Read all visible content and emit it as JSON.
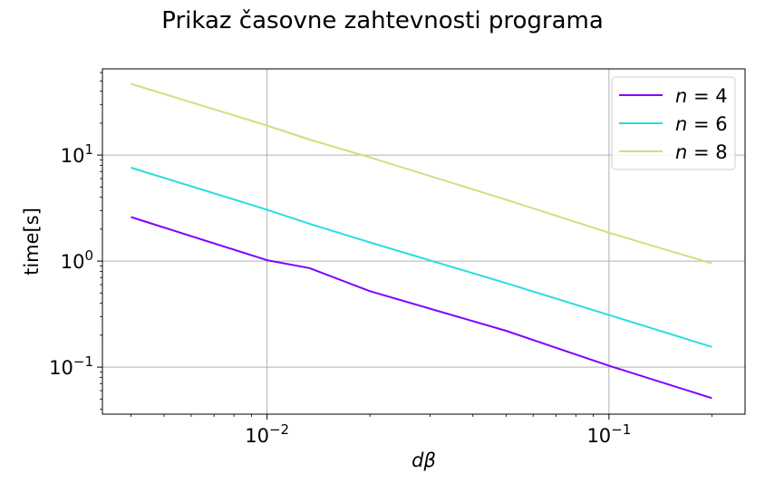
{
  "chart_data": {
    "type": "line",
    "title": "Prikaz časovne zahtevnosti programa",
    "xlabel": "dβ",
    "ylabel": "time[s]",
    "xscale": "log",
    "yscale": "log",
    "xlim": [
      0.0033,
      0.25
    ],
    "ylim": [
      0.036,
      65
    ],
    "grid": true,
    "legend_position": "top-right",
    "x_ticks": [
      {
        "value": 0.01,
        "base": "10",
        "exp": "−2"
      },
      {
        "value": 0.1,
        "base": "10",
        "exp": "−1"
      }
    ],
    "y_ticks": [
      {
        "value": 0.1,
        "base": "10",
        "exp": "−1"
      },
      {
        "value": 1,
        "base": "10",
        "exp": "0"
      },
      {
        "value": 10,
        "base": "10",
        "exp": "1"
      }
    ],
    "series": [
      {
        "name": "n = 4",
        "legend_var": "n",
        "legend_val": "4",
        "color": "#8000ff",
        "x": [
          0.004,
          0.01,
          0.0133,
          0.02,
          0.05,
          0.1,
          0.2
        ],
        "y": [
          2.6,
          1.02,
          0.86,
          0.52,
          0.22,
          0.103,
          0.051
        ]
      },
      {
        "name": "n = 6",
        "legend_var": "n",
        "legend_val": "6",
        "color": "#2adddd",
        "x": [
          0.004,
          0.01,
          0.0133,
          0.02,
          0.05,
          0.1,
          0.2
        ],
        "y": [
          7.6,
          3.05,
          2.25,
          1.5,
          0.62,
          0.31,
          0.155
        ]
      },
      {
        "name": "n = 8",
        "legend_var": "n",
        "legend_val": "8",
        "color": "#d4dd80",
        "x": [
          0.004,
          0.01,
          0.0133,
          0.02,
          0.05,
          0.1,
          0.2
        ],
        "y": [
          47,
          19,
          14,
          9.5,
          3.8,
          1.85,
          0.95
        ]
      }
    ]
  }
}
